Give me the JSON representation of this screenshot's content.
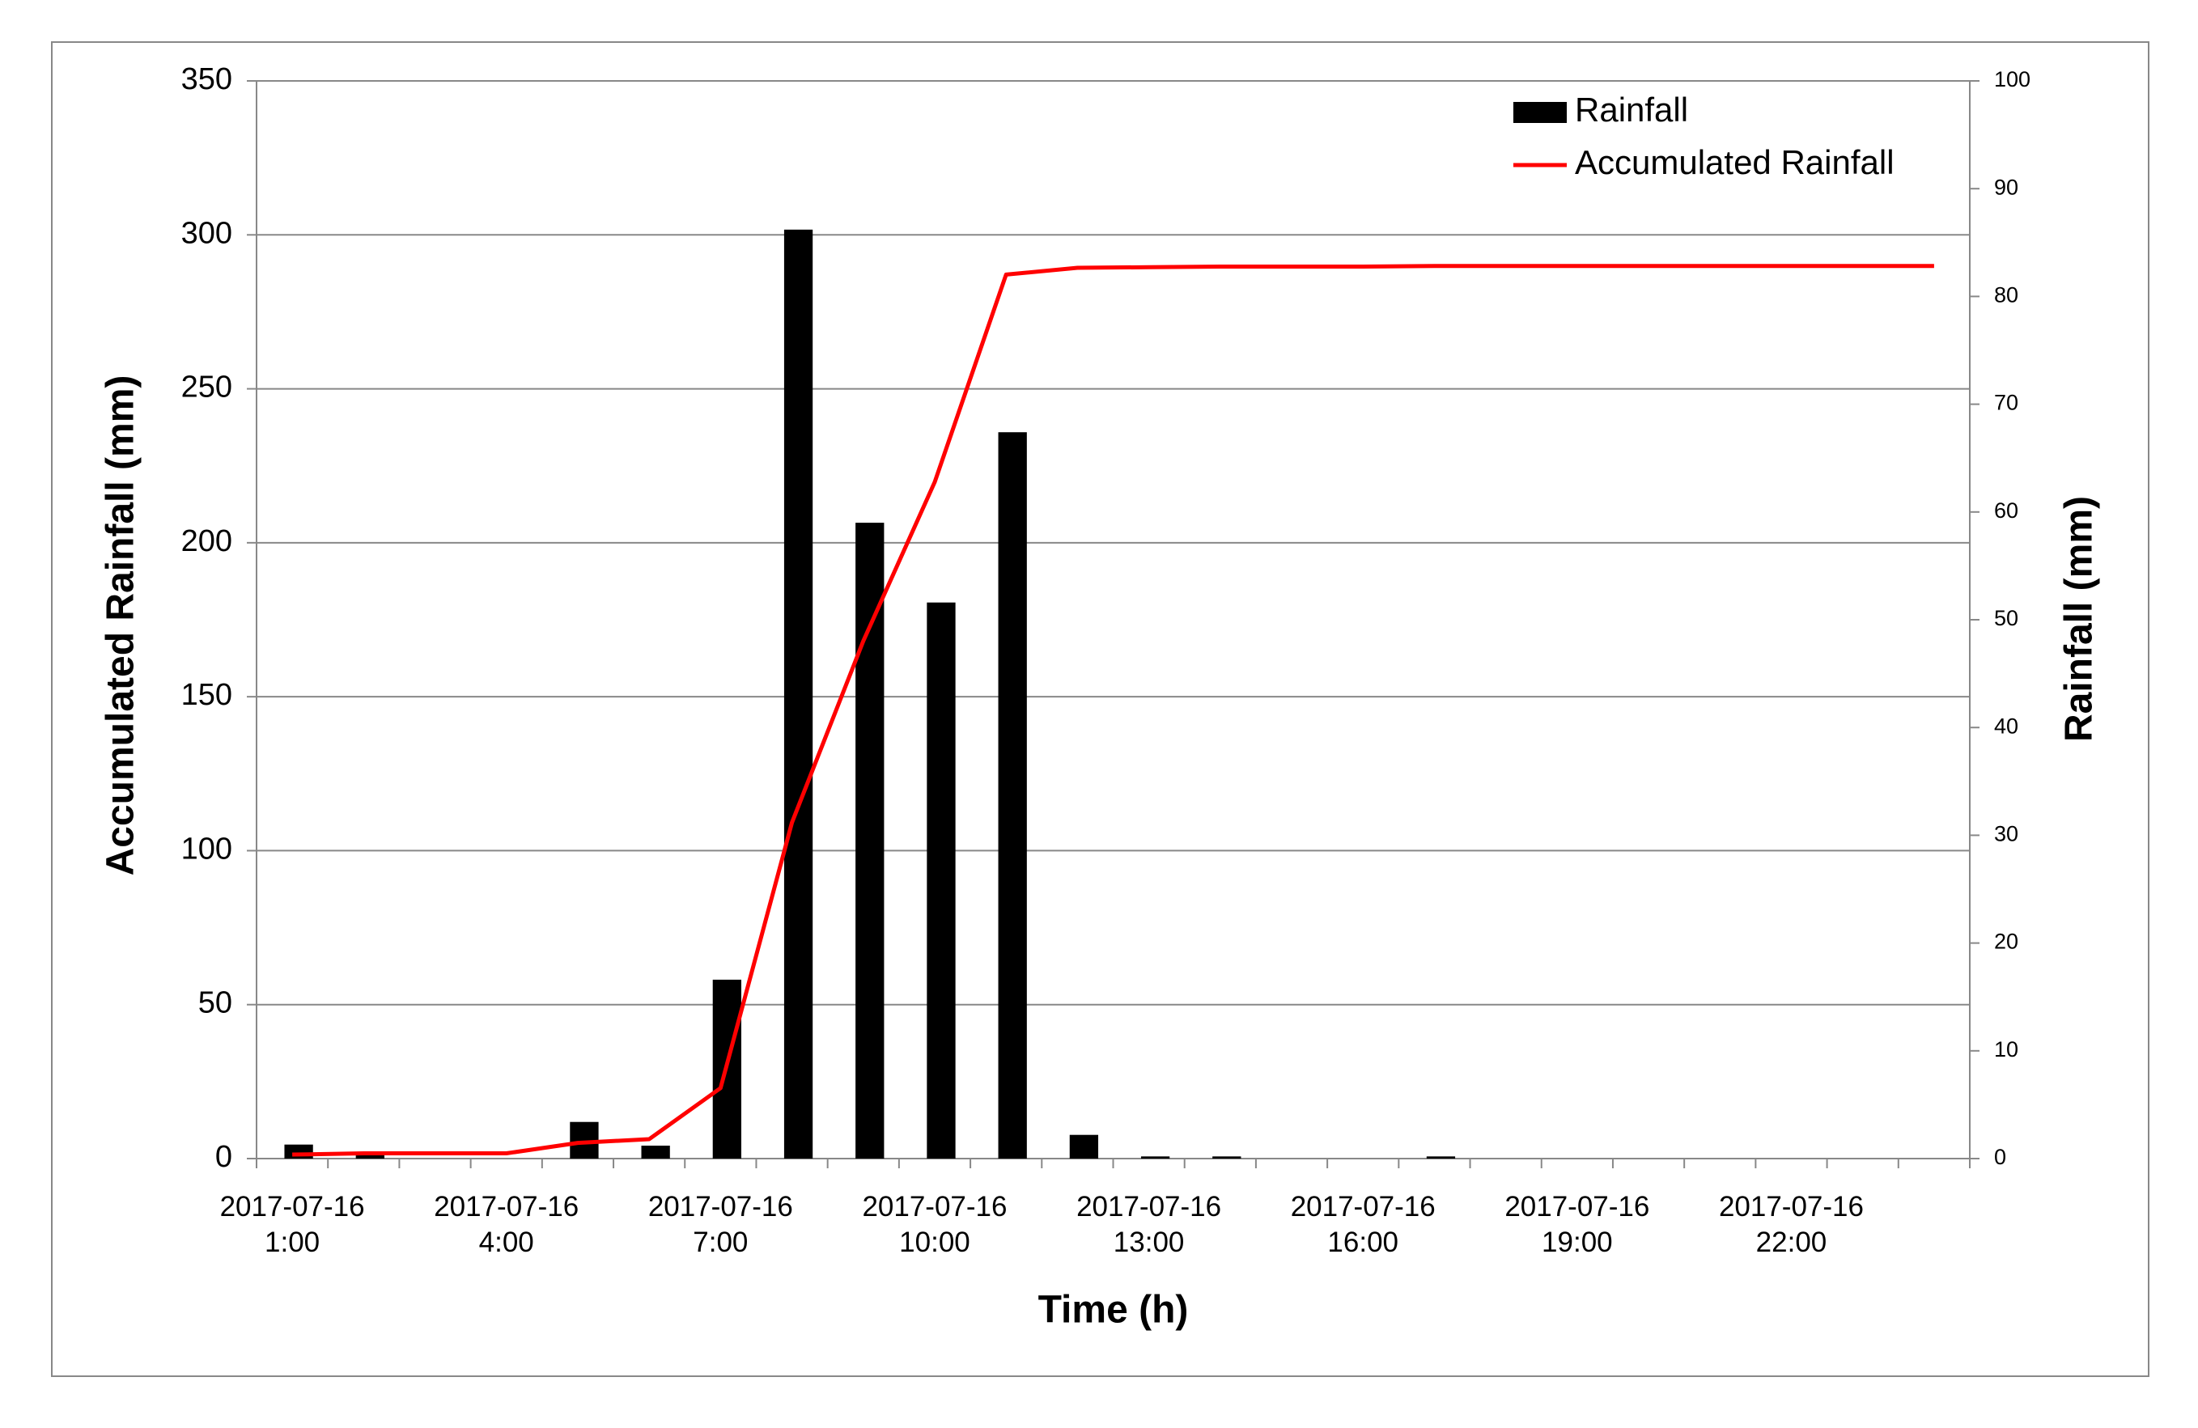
{
  "chart_data": {
    "type": "bar-line",
    "xlabel": "Time (h)",
    "ylabel": "Accumulated Rainfall (mm)",
    "y2label": "Rainfall (mm)",
    "categories": [
      "2017-07-16\n1:00",
      null,
      null,
      "2017-07-16\n4:00",
      null,
      null,
      "2017-07-16\n7:00",
      null,
      null,
      "2017-07-16\n10:00",
      null,
      null,
      "2017-07-16\n13:00",
      null,
      null,
      "2017-07-16\n16:00",
      null,
      null,
      "2017-07-16\n19:00",
      null,
      null,
      "2017-07-16\n22:00",
      null,
      null
    ],
    "series": [
      {
        "name": "Rainfall",
        "type": "bar",
        "axis": "y2",
        "color": "#000000",
        "values": [
          1.3,
          0.4,
          0,
          0,
          3.4,
          1.2,
          16.6,
          86.2,
          59.0,
          51.6,
          67.4,
          2.2,
          0.2,
          0.2,
          0,
          0,
          0.2,
          0,
          0,
          0,
          0,
          0,
          0,
          0
        ]
      },
      {
        "name": "Accumulated Rainfall",
        "type": "line",
        "axis": "y",
        "color": "#ff0000",
        "values": [
          1.3,
          1.7,
          1.7,
          1.7,
          5.1,
          6.3,
          22.9,
          109.1,
          168.1,
          219.7,
          287.1,
          289.3,
          289.5,
          289.7,
          289.7,
          289.7,
          289.9,
          289.9,
          289.9,
          289.9,
          289.9,
          289.9,
          289.9,
          289.9
        ]
      }
    ],
    "ylim": [
      0,
      350
    ],
    "yticks": [
      0,
      50,
      100,
      150,
      200,
      250,
      300,
      350
    ],
    "y2lim": [
      0,
      100
    ],
    "y2ticks": [
      0,
      10,
      20,
      30,
      40,
      50,
      60,
      70,
      80,
      90,
      100
    ],
    "grid": true,
    "legend": "top-right"
  }
}
